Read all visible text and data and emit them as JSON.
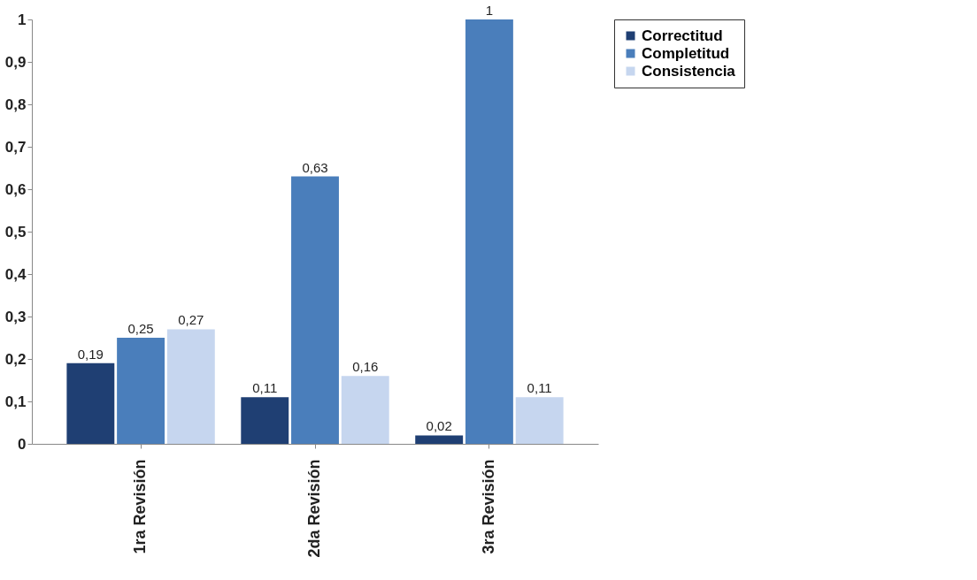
{
  "chart_data": {
    "type": "bar",
    "categories": [
      "1ra Revisión",
      "2da Revisión",
      "3ra Revisión"
    ],
    "series": [
      {
        "name": "Correctitud",
        "color": "#1f3f73",
        "values": [
          0.19,
          0.11,
          0.02
        ],
        "value_labels": [
          "0,19",
          "0,11",
          "0,02"
        ]
      },
      {
        "name": "Completitud",
        "color": "#4a7ebb",
        "values": [
          0.25,
          0.63,
          1
        ],
        "value_labels": [
          "0,25",
          "0,63",
          "1"
        ]
      },
      {
        "name": "Consistencia",
        "color": "#c6d6ef",
        "values": [
          0.27,
          0.16,
          0.11
        ],
        "value_labels": [
          "0,27",
          "0,16",
          "0,11"
        ]
      }
    ],
    "ylim": [
      0,
      1
    ],
    "yticks": [
      0,
      {
        "value": 0.1,
        "label": "0,1"
      },
      {
        "value": 0.2,
        "label": "0,2"
      },
      {
        "value": 0.3,
        "label": "0,3"
      },
      {
        "value": 0.4,
        "label": "0,4"
      },
      {
        "value": 0.5,
        "label": "0,5"
      },
      {
        "value": 0.6,
        "label": "0,6"
      },
      {
        "value": 0.7,
        "label": "0,7"
      },
      {
        "value": 0.8,
        "label": "0,8"
      },
      {
        "value": 0.9,
        "label": "0,9"
      },
      1
    ],
    "grid": false,
    "legend": "right"
  }
}
